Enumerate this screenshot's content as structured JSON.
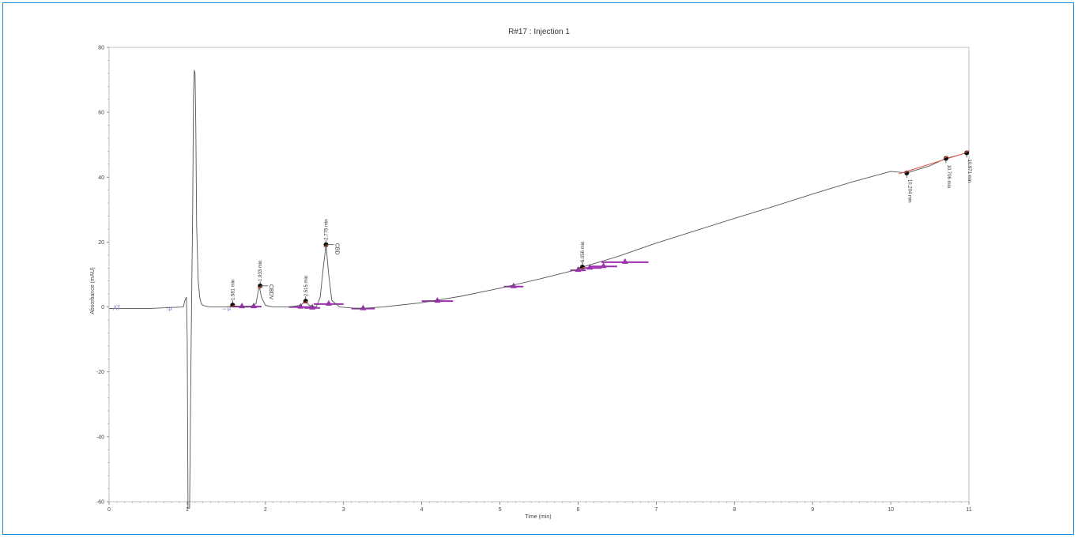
{
  "chart_data": {
    "type": "line",
    "title": "R#17 : Injection 1",
    "xlabel": "Time (min)",
    "ylabel": "Absorbance (mAU)",
    "xlim": [
      0,
      11
    ],
    "ylim": [
      -60,
      80
    ],
    "x_ticks": [
      0,
      1,
      2,
      3,
      4,
      5,
      6,
      7,
      8,
      9,
      10,
      11
    ],
    "y_ticks": [
      -60,
      -40,
      -20,
      0,
      20,
      40,
      60,
      80
    ],
    "x_tick_labels": [
      "0",
      "1",
      "2",
      "3",
      "4",
      "5",
      "6",
      "7",
      "8",
      "9",
      "10",
      "11"
    ],
    "y_tick_labels": [
      "-60",
      "-40",
      "-20",
      "0",
      "20",
      "40",
      "60",
      "80"
    ],
    "grid": false,
    "series": [
      {
        "color": "#555555",
        "x": [
          0,
          0.5,
          0.95,
          0.97,
          0.99,
          1.0,
          1.01,
          1.03,
          1.05,
          1.07,
          1.08,
          1.09,
          1.1,
          1.11,
          1.12,
          1.14,
          1.16,
          1.18,
          1.2,
          1.25,
          1.3,
          1.4,
          1.5,
          1.56,
          1.58,
          1.6,
          1.8,
          1.88,
          1.92,
          1.95,
          2.0,
          2.1,
          2.3,
          2.45,
          2.51,
          2.56,
          2.65,
          2.7,
          2.74,
          2.775,
          2.81,
          2.85,
          2.95,
          3.2,
          3.5,
          4.0,
          4.5,
          5.0,
          5.5,
          6.0,
          6.056,
          6.5,
          7.0,
          7.5,
          8.0,
          8.5,
          9.0,
          9.5,
          10.0,
          10.204,
          10.5,
          10.706,
          10.971,
          11.0
        ],
        "y": [
          -0.5,
          -0.5,
          0,
          2,
          3,
          -10,
          -62,
          -62,
          -10,
          30,
          65,
          73,
          72,
          55,
          25,
          8,
          3,
          1,
          0.5,
          0.2,
          0,
          0,
          0,
          0.3,
          0.6,
          0.3,
          0,
          1,
          6.5,
          3,
          0.5,
          0,
          0,
          0.5,
          1.8,
          0.5,
          0,
          3,
          12,
          19.2,
          10,
          2,
          0,
          -0.5,
          0,
          1.3,
          3.3,
          5.8,
          8.6,
          11.6,
          12.3,
          15.5,
          19.7,
          23.5,
          27.3,
          31,
          34.8,
          38.5,
          41.8,
          41.3,
          43.5,
          45.8,
          47.5,
          48
        ]
      }
    ],
    "peaks": [
      {
        "time": 1.581,
        "label": "1.581 min",
        "y": 0.6
      },
      {
        "time": 1.933,
        "label": "1.933 min",
        "y": 6.5,
        "compound": "CBDV"
      },
      {
        "time": 2.515,
        "label": "2.515 min",
        "y": 1.8
      },
      {
        "time": 2.775,
        "label": "2.775 min",
        "y": 19.2,
        "compound": "CBD"
      },
      {
        "time": 6.056,
        "label": "6.056 min",
        "y": 12.3
      },
      {
        "time": 10.204,
        "label": "10.204 min",
        "y": 41.3
      },
      {
        "time": 10.706,
        "label": "10.706 min",
        "y": 45.8
      },
      {
        "time": 10.971,
        "label": "10.971 min",
        "y": 47.5
      }
    ],
    "integration_events": [
      {
        "label": "AT",
        "time": 0.05
      },
      {
        "label": "↑µ",
        "time": 0.72
      },
      {
        "label": "→µ",
        "time": 1.43
      }
    ],
    "integration_markers": [
      {
        "x0": 1.6,
        "x1": 1.8,
        "y": 0.1
      },
      {
        "x0": 1.75,
        "x1": 1.95,
        "y": 0.1
      },
      {
        "x0": 2.3,
        "x1": 2.6,
        "y": 0
      },
      {
        "x0": 2.5,
        "x1": 2.7,
        "y": -0.3
      },
      {
        "x0": 2.62,
        "x1": 3.0,
        "y": 0.9
      },
      {
        "x0": 3.1,
        "x1": 3.4,
        "y": -0.5
      },
      {
        "x0": 4.0,
        "x1": 4.4,
        "y": 1.8
      },
      {
        "x0": 5.05,
        "x1": 5.3,
        "y": 6.3
      },
      {
        "x0": 5.9,
        "x1": 6.1,
        "y": 11.3
      },
      {
        "x0": 6.0,
        "x1": 6.3,
        "y": 12.0
      },
      {
        "x0": 6.15,
        "x1": 6.5,
        "y": 12.5
      },
      {
        "x0": 6.3,
        "x1": 6.9,
        "y": 13.8
      }
    ]
  }
}
